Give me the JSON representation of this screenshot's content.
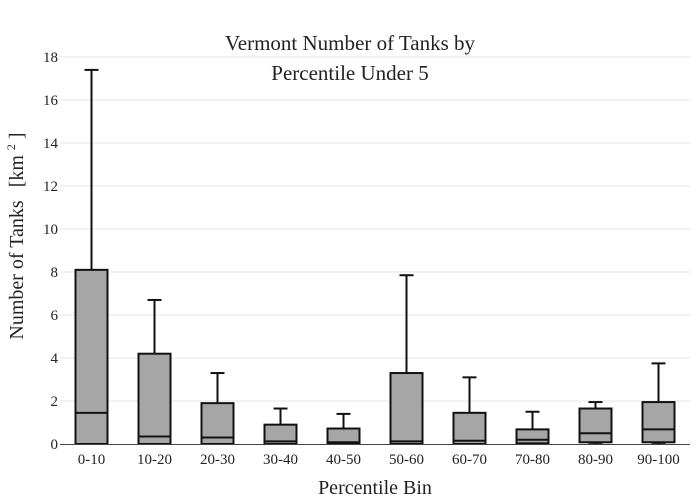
{
  "chart_data": {
    "type": "box",
    "title_lines": [
      "Vermont Number of Tanks by",
      "Percentile Under 5"
    ],
    "xlabel": "Percentile Bin",
    "ylabel": "Number of Tanks",
    "ylabel_unit_base": "[km",
    "ylabel_unit_sup": "2",
    "ylabel_unit_close": "]",
    "ylim": [
      0,
      18
    ],
    "yticks": [
      0,
      2,
      4,
      6,
      8,
      10,
      12,
      14,
      16,
      18
    ],
    "grid": true,
    "legend": "none",
    "box_fill": "#a6a6a6",
    "line_color": "#111111",
    "grid_color": "#e6e6e6",
    "categories": [
      "0-10",
      "10-20",
      "20-30",
      "30-40",
      "40-50",
      "50-60",
      "60-70",
      "70-80",
      "80-90",
      "90-100"
    ],
    "boxes": [
      {
        "min": 0,
        "q1": 0,
        "median": 1.45,
        "q3": 8.1,
        "max": 17.4
      },
      {
        "min": 0,
        "q1": 0,
        "median": 0.35,
        "q3": 4.2,
        "max": 6.7
      },
      {
        "min": 0,
        "q1": 0,
        "median": 0.3,
        "q3": 1.9,
        "max": 3.3
      },
      {
        "min": 0,
        "q1": 0,
        "median": 0.12,
        "q3": 0.9,
        "max": 1.65
      },
      {
        "min": 0,
        "q1": 0,
        "median": 0.08,
        "q3": 0.72,
        "max": 1.4
      },
      {
        "min": 0,
        "q1": 0,
        "median": 0.12,
        "q3": 3.3,
        "max": 7.85
      },
      {
        "min": 0,
        "q1": 0,
        "median": 0.15,
        "q3": 1.45,
        "max": 3.1
      },
      {
        "min": 0,
        "q1": 0.03,
        "median": 0.2,
        "q3": 0.68,
        "max": 1.5
      },
      {
        "min": 0,
        "q1": 0.08,
        "median": 0.5,
        "q3": 1.65,
        "max": 1.95
      },
      {
        "min": 0,
        "q1": 0.08,
        "median": 0.68,
        "q3": 1.95,
        "max": 3.75
      }
    ]
  }
}
